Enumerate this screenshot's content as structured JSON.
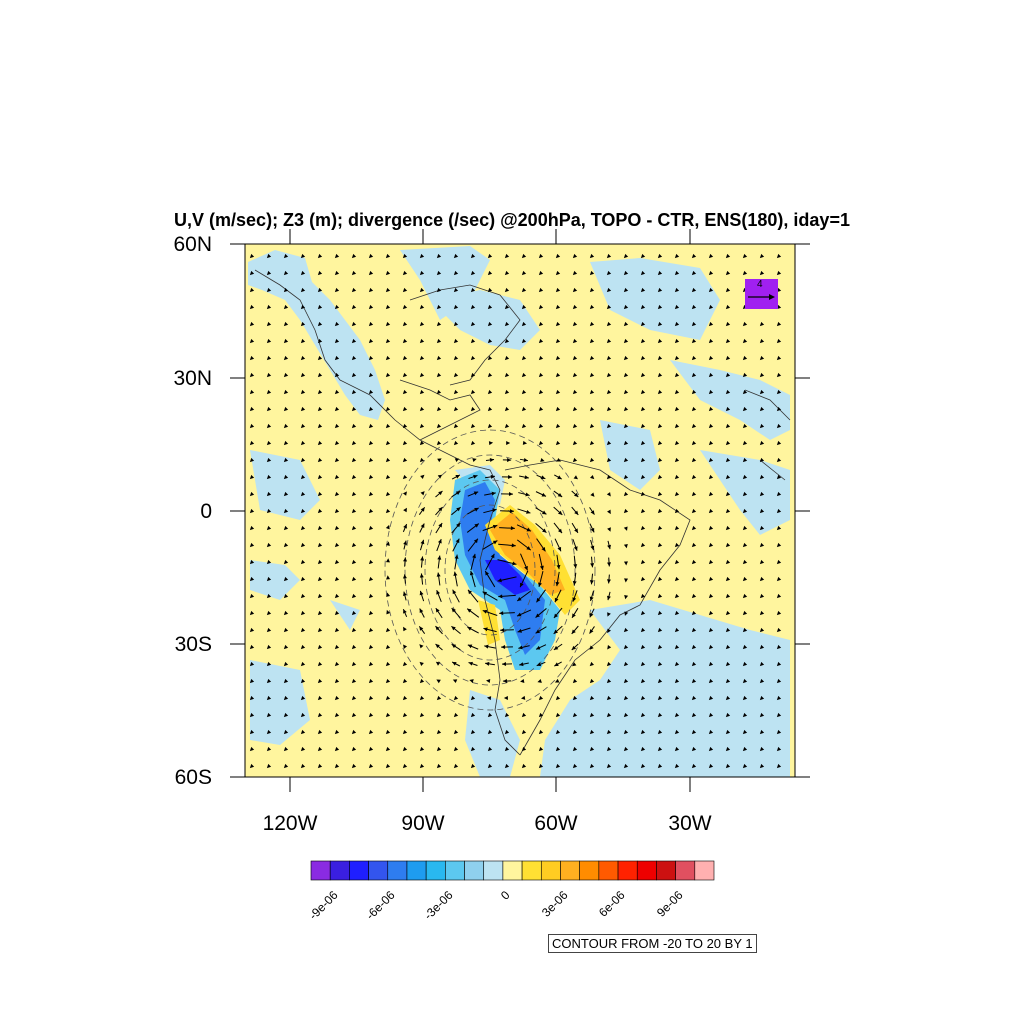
{
  "title": "U,V (m/sec); Z3 (m); divergence (/sec) @200hPa, TOPO - CTR, ENS(180), iday=1",
  "axes": {
    "lat_labels": [
      "60N",
      "30N",
      "0",
      "30S",
      "60S"
    ],
    "lon_labels": [
      "120W",
      "90W",
      "60W",
      "30W"
    ],
    "lat_range": [
      -60,
      60
    ],
    "lon_range": [
      -130,
      -5
    ]
  },
  "colorbar": {
    "colors": [
      "#8a2be2",
      "#3a1fe0",
      "#1f1fff",
      "#3355ee",
      "#2e7df0",
      "#1e9cf0",
      "#29b8f0",
      "#5cc8f0",
      "#8fd0ee",
      "#bde3f2",
      "#fff59e",
      "#ffe033",
      "#ffcc22",
      "#ffb020",
      "#ff8c00",
      "#ff5a00",
      "#ff2200",
      "#ee0000",
      "#cc1111",
      "#e05060",
      "#ffb0b0"
    ],
    "labels": [
      "-9e-06",
      "-6e-06",
      "-3e-06",
      "0",
      "3e-06",
      "6e-06",
      "9e-06"
    ]
  },
  "contour_info": "CONTOUR FROM -20 TO 20 BY 1",
  "reference_vector": {
    "value": "4",
    "color": "#a020f0"
  },
  "colors": {
    "positive_bg": "#fff59e",
    "negative_light": "#bde3f2",
    "blue_strong": "#2e7df0",
    "blue_deep": "#1f1fff",
    "orange": "#ffb020",
    "yellow_mid": "#ffcc22"
  }
}
